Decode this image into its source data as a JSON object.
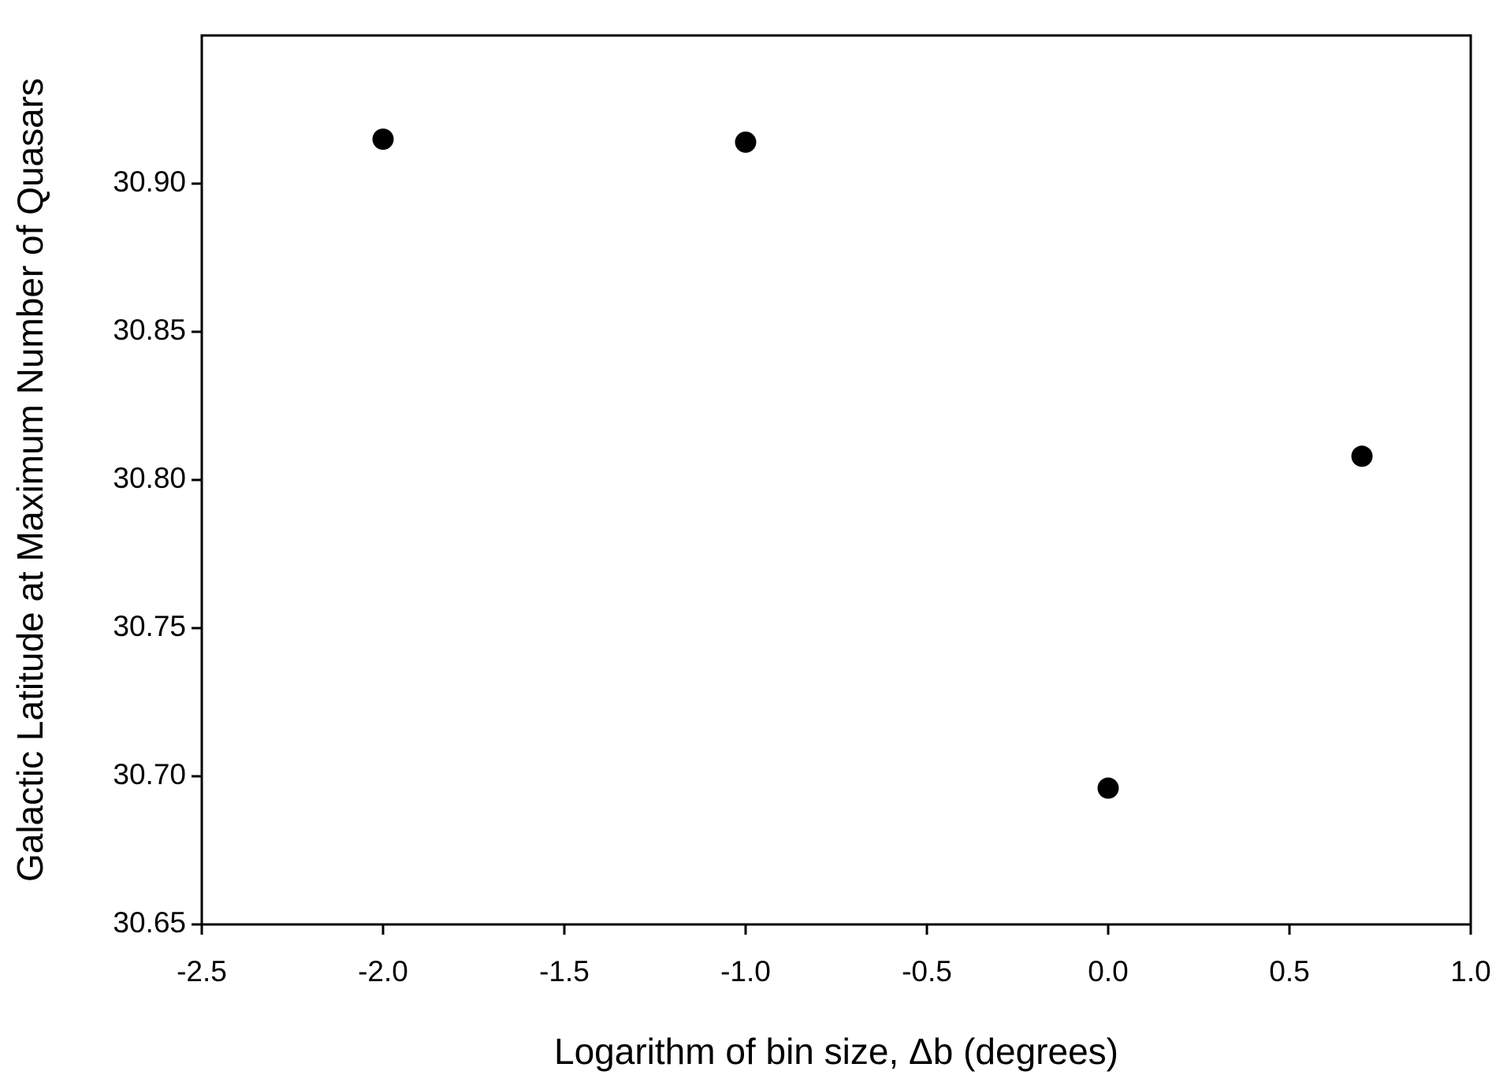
{
  "chart_data": {
    "type": "scatter",
    "x_label": "Logarithm of bin size, Δb (degrees)",
    "y_label": "Galactic Latitude at Maximum Number of Quasars",
    "x": [
      -2,
      -1,
      0,
      0.7
    ],
    "series": [
      {
        "color": "#000000",
        "values": [
          30.915,
          30.914,
          30.696,
          30.808
        ]
      }
    ],
    "xlim": [
      -2.5,
      1.0
    ],
    "ylim": [
      30.65,
      30.95
    ],
    "xticks": [
      -2.5,
      {
        "value": -2.0,
        "label": "-2.0"
      },
      -1.5,
      {
        "value": -1.0,
        "label": "-1.0"
      },
      -0.5,
      {
        "value": 0.0,
        "label": "0.0"
      },
      0.5,
      {
        "value": 1.0,
        "label": "1.0"
      }
    ],
    "yticks": [
      30.65,
      {
        "value": 30.7,
        "label": "30.70"
      },
      30.75,
      {
        "value": 30.8,
        "label": "30.80"
      },
      30.85,
      {
        "value": 30.9,
        "label": "30.90"
      }
    ],
    "grid": false
  }
}
